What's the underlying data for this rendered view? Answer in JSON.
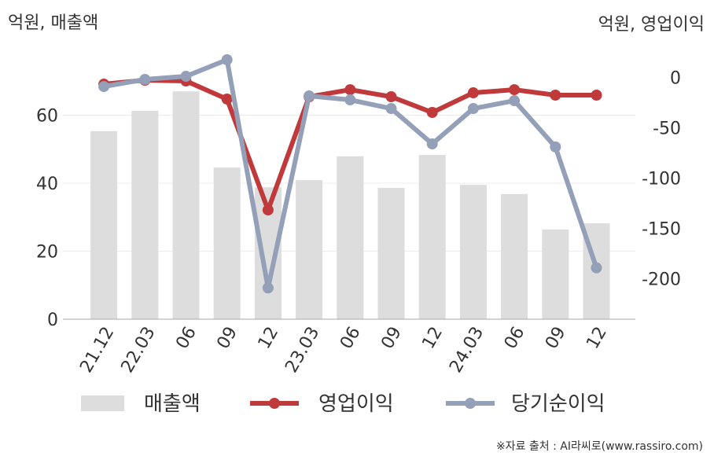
{
  "chart_data": {
    "type": "bar_line",
    "y_axis_label": "억원, 매출액",
    "y2_axis_label": "억원, 영업이익",
    "categories": [
      "21.12",
      "22.03",
      "06",
      "09",
      "12",
      "23.03",
      "06",
      "09",
      "12",
      "24.03",
      "06",
      "09",
      "12"
    ],
    "series": [
      {
        "name": "매출액",
        "type": "bar",
        "color": "#dddddd",
        "axis": "y",
        "values": [
          55.3,
          61.3,
          67,
          44.6,
          38.8,
          40.9,
          47.9,
          38.6,
          48.3,
          39.5,
          36.8,
          26.4,
          28.2
        ]
      },
      {
        "name": "영업이익",
        "type": "line",
        "color": "#c0393b",
        "axis": "y2",
        "values": [
          -6.7,
          -2.8,
          -3.6,
          -21.5,
          -131.6,
          -19.2,
          -12.2,
          -19.2,
          -34.8,
          -15.3,
          -12.2,
          -17.6,
          -17.6
        ]
      },
      {
        "name": "당기순이익",
        "type": "line",
        "color": "#94a0b8",
        "axis": "y2",
        "values": [
          -9.1,
          -2,
          1.1,
          17.5,
          -209,
          -18.4,
          -22.3,
          -30.9,
          -66,
          -30.9,
          -23.1,
          -69,
          -189
        ]
      }
    ],
    "ylim": [
      0,
      80
    ],
    "yticks": [
      0,
      20,
      40,
      60
    ],
    "y2lim": [
      -240,
      30
    ],
    "y2ticks": [
      0,
      -50,
      -100,
      -150,
      -200
    ],
    "grid": true,
    "source": "※자료 출처 : AI라씨로(www.rassiro.com)"
  }
}
